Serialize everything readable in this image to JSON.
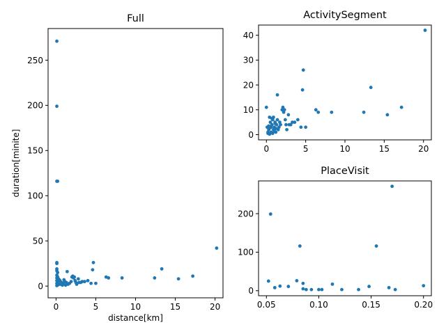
{
  "chart_data": [
    {
      "type": "scatter",
      "title": "Full",
      "xlabel": "distance[km]",
      "ylabel": "duration[minite]",
      "xlim": [
        -1,
        21
      ],
      "ylim": [
        -13,
        285
      ],
      "xticks": [
        "0",
        "5",
        "10",
        "15",
        "20"
      ],
      "yticks": [
        "0",
        "50",
        "100",
        "150",
        "200",
        "250"
      ],
      "color": "#1f77b4",
      "points": [
        [
          0.1,
          271
        ],
        [
          0.1,
          199
        ],
        [
          0.1,
          116
        ],
        [
          0.2,
          116
        ],
        [
          0.1,
          26
        ],
        [
          0.1,
          25
        ],
        [
          0.1,
          19
        ],
        [
          0.1,
          17
        ],
        [
          0.2,
          15
        ],
        [
          0.1,
          12
        ],
        [
          0.2,
          10
        ],
        [
          0.1,
          9
        ],
        [
          0.3,
          8
        ],
        [
          0.2,
          7
        ],
        [
          0.1,
          6
        ],
        [
          0.3,
          5
        ],
        [
          0.2,
          4
        ],
        [
          0.1,
          3
        ],
        [
          0.4,
          2
        ],
        [
          0.2,
          1
        ],
        [
          0.1,
          0.5
        ],
        [
          0.5,
          6
        ],
        [
          0.7,
          4
        ],
        [
          0.9,
          3
        ],
        [
          1.1,
          5
        ],
        [
          1.3,
          4
        ],
        [
          0.8,
          1
        ],
        [
          1.4,
          16
        ],
        [
          1.5,
          2
        ],
        [
          1.7,
          3
        ],
        [
          1.2,
          1
        ],
        [
          0.6,
          2
        ],
        [
          1.0,
          7
        ],
        [
          0.4,
          7
        ],
        [
          1.9,
          5
        ],
        [
          2.0,
          10
        ],
        [
          2.1,
          11
        ],
        [
          2.2,
          9
        ],
        [
          2.3,
          10
        ],
        [
          2.4,
          6
        ],
        [
          2.5,
          4
        ],
        [
          2.6,
          2
        ],
        [
          2.8,
          8
        ],
        [
          2.9,
          4
        ],
        [
          3.1,
          4
        ],
        [
          3.3,
          5
        ],
        [
          3.6,
          5
        ],
        [
          4.0,
          6
        ],
        [
          4.4,
          3
        ],
        [
          4.6,
          18
        ],
        [
          4.7,
          26
        ],
        [
          5.0,
          3
        ],
        [
          6.3,
          10
        ],
        [
          6.6,
          9
        ],
        [
          8.3,
          9
        ],
        [
          12.4,
          9
        ],
        [
          13.3,
          19
        ],
        [
          15.4,
          8
        ],
        [
          17.2,
          11
        ],
        [
          20.2,
          42
        ]
      ]
    },
    {
      "type": "scatter",
      "title": "ActivitySegment",
      "xlim": [
        -1,
        21
      ],
      "ylim": [
        -2.1,
        44.1
      ],
      "xticks": [
        "0",
        "5",
        "10",
        "15",
        "20"
      ],
      "yticks": [
        "0",
        "10",
        "20",
        "30",
        "40"
      ],
      "color": "#1f77b4",
      "points": [
        [
          0,
          11
        ],
        [
          0.1,
          3
        ],
        [
          0.2,
          1
        ],
        [
          0.3,
          2
        ],
        [
          0.4,
          7
        ],
        [
          0.5,
          5
        ],
        [
          0.6,
          3
        ],
        [
          0.7,
          4
        ],
        [
          0.8,
          6
        ],
        [
          0.9,
          2
        ],
        [
          1.0,
          3
        ],
        [
          1.1,
          5
        ],
        [
          1.2,
          1
        ],
        [
          1.3,
          4
        ],
        [
          1.4,
          6
        ],
        [
          1.5,
          2
        ],
        [
          1.6,
          3
        ],
        [
          1.7,
          5
        ],
        [
          1.8,
          4
        ],
        [
          0.2,
          0.5
        ],
        [
          0.4,
          0.2
        ],
        [
          0.6,
          1
        ],
        [
          0.8,
          0.5
        ],
        [
          1.0,
          1.5
        ],
        [
          1.2,
          2.5
        ],
        [
          0.3,
          3.5
        ],
        [
          0.5,
          2.8
        ],
        [
          0.7,
          6.5
        ],
        [
          0.9,
          7
        ],
        [
          1.1,
          4.5
        ],
        [
          1.4,
          16
        ],
        [
          2.0,
          10
        ],
        [
          2.1,
          11
        ],
        [
          2.2,
          9
        ],
        [
          2.3,
          10
        ],
        [
          2.4,
          6
        ],
        [
          2.5,
          4
        ],
        [
          2.6,
          2
        ],
        [
          2.8,
          8
        ],
        [
          2.9,
          4
        ],
        [
          3.1,
          4
        ],
        [
          3.3,
          5
        ],
        [
          3.6,
          5
        ],
        [
          4.0,
          6
        ],
        [
          4.4,
          3
        ],
        [
          4.6,
          18
        ],
        [
          4.7,
          26
        ],
        [
          5.0,
          3
        ],
        [
          6.3,
          10
        ],
        [
          6.6,
          9
        ],
        [
          8.3,
          9
        ],
        [
          12.4,
          9
        ],
        [
          13.3,
          19
        ],
        [
          15.4,
          8
        ],
        [
          17.2,
          11
        ],
        [
          20.2,
          42
        ]
      ]
    },
    {
      "type": "scatter",
      "title": "PlaceVisit",
      "xlim": [
        0.0425,
        0.2075
      ],
      "ylim": [
        -13,
        285
      ],
      "xticks": [
        "0.05",
        "0.10",
        "0.15",
        "0.20"
      ],
      "yticks": [
        "0",
        "100",
        "200"
      ],
      "color": "#1f77b4",
      "points": [
        [
          0.052,
          25
        ],
        [
          0.054,
          199
        ],
        [
          0.058,
          8
        ],
        [
          0.063,
          12
        ],
        [
          0.071,
          11
        ],
        [
          0.079,
          26
        ],
        [
          0.082,
          116
        ],
        [
          0.085,
          19
        ],
        [
          0.085,
          5
        ],
        [
          0.088,
          3
        ],
        [
          0.093,
          3
        ],
        [
          0.1,
          3
        ],
        [
          0.103,
          3
        ],
        [
          0.113,
          17
        ],
        [
          0.122,
          3
        ],
        [
          0.138,
          3
        ],
        [
          0.148,
          11
        ],
        [
          0.155,
          116
        ],
        [
          0.167,
          8
        ],
        [
          0.17,
          271
        ],
        [
          0.173,
          3
        ],
        [
          0.2,
          13
        ]
      ]
    }
  ]
}
